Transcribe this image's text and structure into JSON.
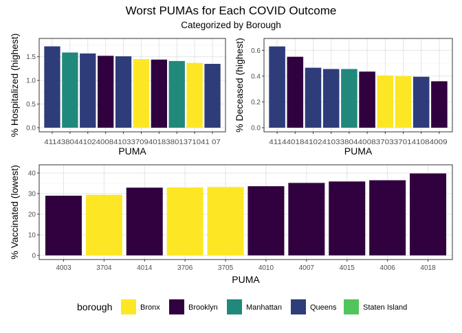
{
  "title": "Worst PUMAs for Each COVID Outcome",
  "subtitle": "Categorized by Borough",
  "legend": {
    "title": "borough",
    "placement": "bottom",
    "items": [
      {
        "label": "Bronx",
        "color": "#FDE725"
      },
      {
        "label": "Brooklyn",
        "color": "#31003F"
      },
      {
        "label": "Manhattan",
        "color": "#21887C"
      },
      {
        "label": "Queens",
        "color": "#2E3D7A"
      },
      {
        "label": "Staten Island",
        "color": "#52C55A"
      }
    ]
  },
  "chart_data": [
    {
      "type": "bar",
      "xlabel": "PUMA",
      "ylabel": "% Hospitalized (highest)",
      "ylim": [
        0,
        1.8
      ],
      "yticks": [
        "0.0",
        "0.5",
        "1.0",
        "1.5"
      ],
      "grid": true,
      "categories": [
        "4114",
        "3804",
        "4102",
        "4008",
        "4103",
        "3709",
        "4018",
        "3801",
        "3710",
        "4107"
      ],
      "tick_label": "41143804410240084103370940183801371041 07",
      "values": [
        1.72,
        1.59,
        1.57,
        1.52,
        1.51,
        1.45,
        1.44,
        1.41,
        1.37,
        1.35
      ],
      "borough": [
        "Queens",
        "Manhattan",
        "Queens",
        "Brooklyn",
        "Queens",
        "Bronx",
        "Brooklyn",
        "Manhattan",
        "Bronx",
        "Queens"
      ]
    },
    {
      "type": "bar",
      "xlabel": "PUMA",
      "ylabel": "% Deceased (highest)",
      "ylim": [
        0,
        0.66
      ],
      "yticks": [
        "0.0",
        "0.2",
        "0.4",
        "0.6"
      ],
      "grid": true,
      "categories": [
        "4114",
        "4018",
        "4102",
        "4103",
        "3804",
        "4008",
        "3703",
        "3701",
        "4108",
        "4009"
      ],
      "tick_label": "4114401841024103380440083703370141084009",
      "values": [
        0.63,
        0.55,
        0.465,
        0.455,
        0.455,
        0.435,
        0.405,
        0.4,
        0.395,
        0.36
      ],
      "borough": [
        "Queens",
        "Brooklyn",
        "Queens",
        "Queens",
        "Manhattan",
        "Brooklyn",
        "Bronx",
        "Bronx",
        "Queens",
        "Brooklyn"
      ]
    },
    {
      "type": "bar",
      "xlabel": "PUMA",
      "ylabel": "% Vaccinated (lowest)",
      "ylim": [
        0,
        42
      ],
      "yticks": [
        "0",
        "10",
        "20",
        "30",
        "40"
      ],
      "grid": true,
      "categories": [
        "4003",
        "3704",
        "4014",
        "3706",
        "3705",
        "4010",
        "4007",
        "4015",
        "4006",
        "4018"
      ],
      "values": [
        29.0,
        29.4,
        32.9,
        33.0,
        33.2,
        33.6,
        35.2,
        35.9,
        36.5,
        39.8
      ],
      "borough": [
        "Brooklyn",
        "Bronx",
        "Brooklyn",
        "Bronx",
        "Bronx",
        "Brooklyn",
        "Brooklyn",
        "Brooklyn",
        "Brooklyn",
        "Brooklyn"
      ]
    }
  ]
}
